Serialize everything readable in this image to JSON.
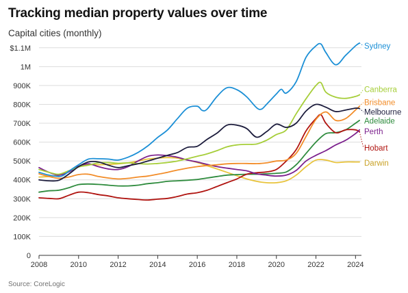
{
  "title": "Tracking median property values over time",
  "subtitle": "Capital cities (monthly)",
  "source": "Source: CoreLogic",
  "chart_data": {
    "type": "line",
    "title": "Tracking median property values over time",
    "subtitle": "Capital cities (monthly)",
    "xlabel": "",
    "ylabel": "",
    "xlim": [
      2008,
      2024.3
    ],
    "ylim": [
      0,
      1150000
    ],
    "x_ticks": [
      "2008",
      "2010",
      "2012",
      "2014",
      "2016",
      "2018",
      "2020",
      "2022",
      "2024"
    ],
    "y_ticks": [
      "0",
      "100K",
      "200K",
      "300K",
      "400K",
      "500K",
      "600K",
      "700K",
      "800K",
      "900K",
      "1M",
      "$1.1M"
    ],
    "grid": true,
    "legend": "direct labels at right end of lines",
    "series": [
      {
        "name": "Sydney",
        "color": "#1b8fd6",
        "x": [
          2008,
          2008.5,
          2009,
          2009.25,
          2009.5,
          2010,
          2010.5,
          2011,
          2011.5,
          2012,
          2012.5,
          2013,
          2013.5,
          2014,
          2014.5,
          2015,
          2015.5,
          2016,
          2016.25,
          2016.5,
          2017,
          2017.5,
          2018,
          2018.5,
          2019,
          2019.25,
          2019.5,
          2020,
          2020.25,
          2020.5,
          2021,
          2021.5,
          2022,
          2022.25,
          2022.5,
          2023,
          2023.5,
          2024,
          2024.2
        ],
        "y": [
          440000,
          425000,
          418000,
          425000,
          445000,
          480000,
          510000,
          512000,
          510000,
          505000,
          520000,
          545000,
          580000,
          625000,
          665000,
          725000,
          780000,
          790000,
          768000,
          775000,
          842000,
          888000,
          878000,
          840000,
          782000,
          775000,
          800000,
          855000,
          880000,
          860000,
          920000,
          1050000,
          1110000,
          1120000,
          1075000,
          1010000,
          1060000,
          1110000,
          1125000
        ]
      },
      {
        "name": "Canberra",
        "color": "#a6ce39",
        "x": [
          2008,
          2008.5,
          2009,
          2009.5,
          2010,
          2010.5,
          2011,
          2011.5,
          2012,
          2012.5,
          2013,
          2013.5,
          2014,
          2014.5,
          2015,
          2015.5,
          2016,
          2016.5,
          2017,
          2017.5,
          2018,
          2018.5,
          2019,
          2019.5,
          2020,
          2020.5,
          2021,
          2021.5,
          2022,
          2022.25,
          2022.5,
          2023,
          2023.5,
          2024,
          2024.2
        ],
        "y": [
          455000,
          440000,
          430000,
          448000,
          468000,
          478000,
          490000,
          492000,
          488000,
          490000,
          486000,
          484000,
          487000,
          492000,
          500000,
          512000,
          525000,
          538000,
          555000,
          575000,
          585000,
          588000,
          590000,
          610000,
          640000,
          665000,
          750000,
          830000,
          900000,
          915000,
          865000,
          838000,
          832000,
          842000,
          850000
        ]
      },
      {
        "name": "Brisbane",
        "color": "#f28c28",
        "x": [
          2008,
          2008.5,
          2009,
          2009.5,
          2010,
          2010.5,
          2011,
          2011.5,
          2012,
          2012.5,
          2013,
          2013.5,
          2014,
          2014.5,
          2015,
          2015.5,
          2016,
          2016.5,
          2017,
          2017.5,
          2018,
          2018.5,
          2019,
          2019.5,
          2020,
          2020.5,
          2021,
          2021.5,
          2022,
          2022.5,
          2023,
          2023.5,
          2024,
          2024.2
        ],
        "y": [
          432000,
          418000,
          408000,
          415000,
          428000,
          430000,
          418000,
          410000,
          405000,
          408000,
          415000,
          420000,
          430000,
          440000,
          452000,
          462000,
          470000,
          476000,
          480000,
          485000,
          487000,
          487000,
          486000,
          490000,
          500000,
          505000,
          540000,
          630000,
          720000,
          760000,
          715000,
          725000,
          770000,
          790000
        ]
      },
      {
        "name": "Melbourne",
        "color": "#1c1c3c",
        "x": [
          2008,
          2008.5,
          2009,
          2009.5,
          2010,
          2010.5,
          2011,
          2011.5,
          2012,
          2012.5,
          2013,
          2013.5,
          2014,
          2014.5,
          2015,
          2015.5,
          2016,
          2016.5,
          2017,
          2017.5,
          2018,
          2018.5,
          2019,
          2019.5,
          2020,
          2020.5,
          2021,
          2021.5,
          2022,
          2022.5,
          2023,
          2023.5,
          2024,
          2024.2
        ],
        "y": [
          400000,
          395000,
          398000,
          430000,
          470000,
          495000,
          495000,
          478000,
          465000,
          475000,
          485000,
          500000,
          515000,
          530000,
          545000,
          572000,
          578000,
          615000,
          648000,
          690000,
          690000,
          672000,
          626000,
          655000,
          695000,
          678000,
          700000,
          765000,
          800000,
          785000,
          762000,
          770000,
          780000,
          778000
        ]
      },
      {
        "name": "Adelaide",
        "color": "#2e8b3d",
        "x": [
          2008,
          2008.5,
          2009,
          2009.5,
          2010,
          2010.5,
          2011,
          2011.5,
          2012,
          2012.5,
          2013,
          2013.5,
          2014,
          2014.5,
          2015,
          2015.5,
          2016,
          2016.5,
          2017,
          2017.5,
          2018,
          2018.5,
          2019,
          2019.5,
          2020,
          2020.5,
          2021,
          2021.5,
          2022,
          2022.5,
          2023,
          2023.5,
          2024,
          2024.2
        ],
        "y": [
          335000,
          342000,
          345000,
          358000,
          375000,
          378000,
          376000,
          372000,
          368000,
          368000,
          372000,
          380000,
          385000,
          392000,
          395000,
          398000,
          402000,
          410000,
          418000,
          425000,
          428000,
          430000,
          430000,
          432000,
          435000,
          442000,
          480000,
          540000,
          600000,
          645000,
          650000,
          665000,
          700000,
          715000
        ]
      },
      {
        "name": "Perth",
        "color": "#7b1f8c",
        "x": [
          2008,
          2008.5,
          2009,
          2009.5,
          2010,
          2010.5,
          2011,
          2011.5,
          2012,
          2012.5,
          2013,
          2013.5,
          2014,
          2014.5,
          2015,
          2015.5,
          2016,
          2016.5,
          2017,
          2017.5,
          2018,
          2018.5,
          2019,
          2019.5,
          2020,
          2020.5,
          2021,
          2021.5,
          2022,
          2022.5,
          2023,
          2023.5,
          2024,
          2024.2
        ],
        "y": [
          465000,
          440000,
          425000,
          442000,
          472000,
          485000,
          470000,
          458000,
          455000,
          470000,
          500000,
          525000,
          532000,
          528000,
          520000,
          505000,
          495000,
          482000,
          470000,
          462000,
          455000,
          448000,
          432000,
          425000,
          420000,
          425000,
          450000,
          500000,
          530000,
          555000,
          585000,
          610000,
          645000,
          665000
        ]
      },
      {
        "name": "Hobart",
        "color": "#b01410",
        "x": [
          2008,
          2008.5,
          2009,
          2009.5,
          2010,
          2010.5,
          2011,
          2011.5,
          2012,
          2012.5,
          2013,
          2013.5,
          2014,
          2014.5,
          2015,
          2015.5,
          2016,
          2016.5,
          2017,
          2017.5,
          2018,
          2018.5,
          2019,
          2019.5,
          2020,
          2020.5,
          2021,
          2021.5,
          2022,
          2022.25,
          2022.5,
          2023,
          2023.5,
          2024,
          2024.2
        ],
        "y": [
          305000,
          302000,
          300000,
          318000,
          335000,
          332000,
          322000,
          315000,
          305000,
          300000,
          296000,
          293000,
          298000,
          302000,
          312000,
          325000,
          332000,
          345000,
          365000,
          385000,
          405000,
          430000,
          438000,
          442000,
          455000,
          500000,
          560000,
          660000,
          725000,
          745000,
          700000,
          650000,
          665000,
          665000,
          655000
        ]
      },
      {
        "name": "Darwin",
        "color": "#e8c33a",
        "x": [
          2008,
          2008.5,
          2009,
          2009.5,
          2010,
          2010.5,
          2011,
          2011.5,
          2012,
          2012.5,
          2013,
          2013.5,
          2014,
          2014.5,
          2015,
          2015.5,
          2016,
          2016.5,
          2017,
          2017.5,
          2018,
          2018.5,
          2019,
          2019.5,
          2020,
          2020.5,
          2021,
          2021.5,
          2022,
          2022.5,
          2023,
          2023.5,
          2024,
          2024.2
        ],
        "y": [
          415000,
          418000,
          425000,
          445000,
          470000,
          480000,
          480000,
          482000,
          485000,
          490000,
          500000,
          510000,
          515000,
          518000,
          515000,
          505000,
          492000,
          475000,
          458000,
          440000,
          422000,
          405000,
          392000,
          385000,
          385000,
          395000,
          425000,
          470000,
          505000,
          505000,
          492000,
          495000,
          495000,
          495000
        ]
      }
    ],
    "end_labels": [
      {
        "name": "Sydney",
        "color": "#1b8fd6",
        "value": 1125000,
        "label_value": 1110000
      },
      {
        "name": "Canberra",
        "color": "#a6ce39",
        "value": 850000,
        "label_value": 880000
      },
      {
        "name": "Brisbane",
        "color": "#f28c28",
        "value": 790000,
        "label_value": 810000
      },
      {
        "name": "Melbourne",
        "color": "#1c1c3c",
        "value": 778000,
        "label_value": 760000
      },
      {
        "name": "Adelaide",
        "color": "#2e8b3d",
        "value": 715000,
        "label_value": 712000
      },
      {
        "name": "Perth",
        "color": "#7b1f8c",
        "value": 665000,
        "label_value": 656000
      },
      {
        "name": "Hobart",
        "color": "#b01410",
        "value": 655000,
        "label_value": 570000
      },
      {
        "name": "Darwin",
        "color": "#c9a227",
        "value": 495000,
        "label_value": 490000
      }
    ]
  }
}
